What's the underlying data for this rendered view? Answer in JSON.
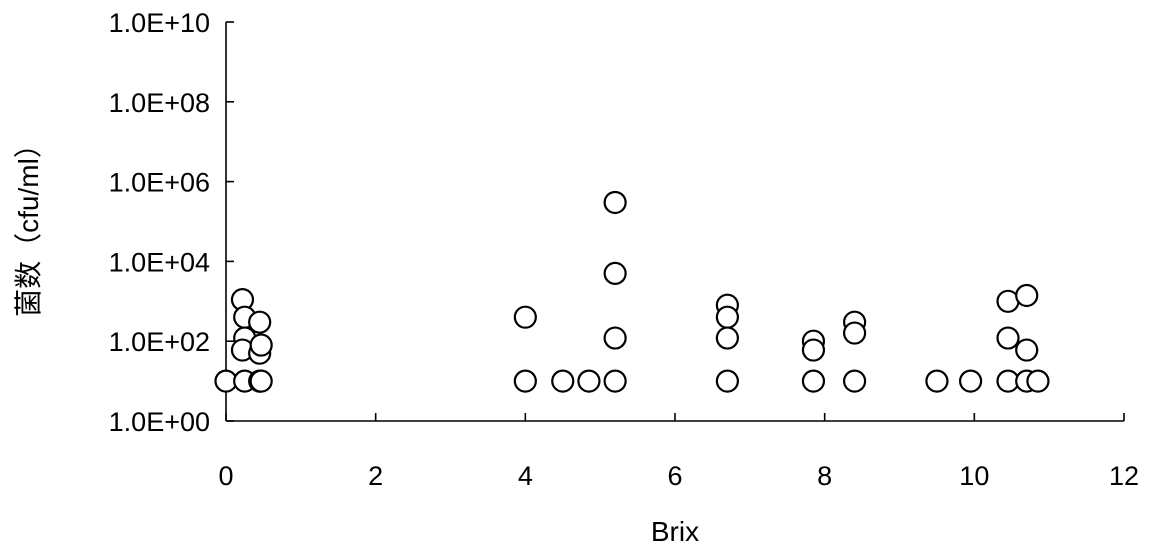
{
  "chart_data": {
    "type": "scatter",
    "title": "",
    "xlabel": "Brix",
    "ylabel": "菌数（cfu/ml）",
    "xlim": [
      0,
      12
    ],
    "ylim": [
      1,
      10000000000
    ],
    "yscale": "log",
    "x_ticks": [
      0,
      2,
      4,
      6,
      8,
      10,
      12
    ],
    "x_tick_labels": [
      "0",
      "2",
      "4",
      "6",
      "8",
      "10",
      "12"
    ],
    "y_ticks": [
      1,
      100,
      10000,
      1000000,
      100000000,
      10000000000
    ],
    "y_tick_labels": [
      "1.0E+00",
      "1.0E+02",
      "1.0E+04",
      "1.0E+06",
      "1.0E+08",
      "1.0E+10"
    ],
    "grid": false,
    "legend": "none",
    "marker": "open-circle",
    "series": [
      {
        "points": [
          [
            0.0,
            10
          ],
          [
            0.25,
            10
          ],
          [
            0.45,
            10
          ],
          [
            0.47,
            10
          ],
          [
            0.22,
            1100
          ],
          [
            0.25,
            400
          ],
          [
            0.25,
            120
          ],
          [
            0.22,
            60
          ],
          [
            0.45,
            300
          ],
          [
            0.45,
            50
          ],
          [
            0.47,
            80
          ],
          [
            4.0,
            400
          ],
          [
            4.0,
            10
          ],
          [
            4.5,
            10
          ],
          [
            4.85,
            10
          ],
          [
            5.2,
            300000
          ],
          [
            5.2,
            5000
          ],
          [
            5.2,
            120
          ],
          [
            5.2,
            10
          ],
          [
            6.7,
            800
          ],
          [
            6.7,
            400
          ],
          [
            6.7,
            120
          ],
          [
            6.7,
            10
          ],
          [
            7.85,
            100
          ],
          [
            7.85,
            60
          ],
          [
            7.85,
            10
          ],
          [
            8.4,
            300
          ],
          [
            8.4,
            160
          ],
          [
            8.4,
            10
          ],
          [
            9.5,
            10
          ],
          [
            9.95,
            10
          ],
          [
            10.45,
            1000
          ],
          [
            10.45,
            120
          ],
          [
            10.45,
            10
          ],
          [
            10.7,
            1400
          ],
          [
            10.7,
            60
          ],
          [
            10.7,
            10
          ],
          [
            10.85,
            10
          ]
        ]
      }
    ]
  }
}
